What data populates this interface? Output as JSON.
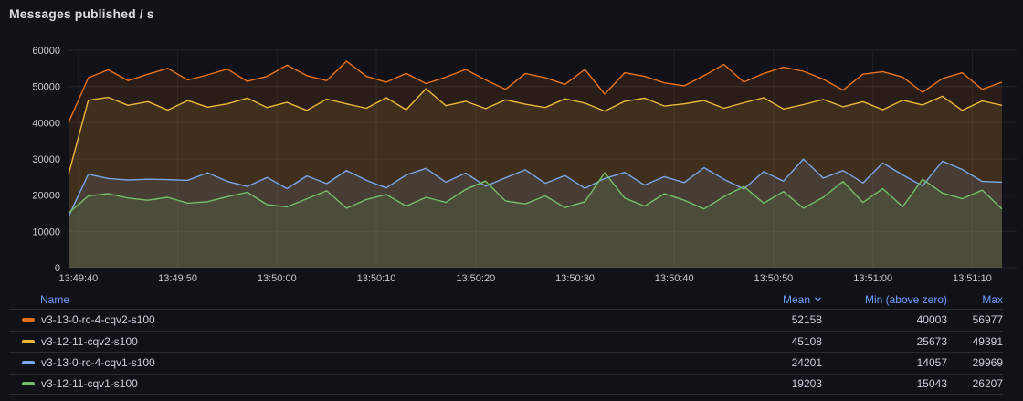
{
  "panel": {
    "title": "Messages published / s"
  },
  "colors": {
    "background": "#111217",
    "accent_blue": "#6E9FFF",
    "axis_text": "#C7C9D1",
    "grid_line": "rgba(204,204,220,0.10)"
  },
  "chart_data": {
    "type": "line",
    "title": "Messages published / s",
    "xlabel": "",
    "ylabel": "",
    "ylim": [
      0,
      60000
    ],
    "y_ticks": [
      0,
      10000,
      20000,
      30000,
      40000,
      50000,
      60000
    ],
    "x_tick_labels": [
      "13:49:40",
      "13:49:50",
      "13:50:00",
      "13:50:10",
      "13:50:20",
      "13:50:30",
      "13:50:40",
      "13:50:50",
      "13:51:00",
      "13:51:10"
    ],
    "grid": true,
    "legend_position": "bottom-table",
    "start_time": "13:49:39",
    "interval_s": 2,
    "fill_opacity": 0.12,
    "series": [
      {
        "name": "v3-13-0-rc-4-cqv2-s100",
        "color": "#E8721F",
        "values": [
          40003,
          52400,
          54600,
          51600,
          53400,
          55000,
          51800,
          53200,
          54800,
          51400,
          52800,
          55900,
          53000,
          51600,
          56977,
          52800,
          51200,
          53600,
          50800,
          52600,
          54700,
          51800,
          49200,
          53600,
          52400,
          50600,
          54700,
          47900,
          53800,
          52800,
          51000,
          50200,
          53000,
          56100,
          51200,
          53600,
          55300,
          54200,
          52000,
          49000,
          53400,
          54100,
          52600,
          48400,
          52200,
          53800,
          49200,
          51200
        ]
      },
      {
        "name": "v3-12-11-cqv2-s100",
        "color": "#EAB839",
        "values": [
          25673,
          46200,
          47000,
          44800,
          45800,
          43500,
          46100,
          44300,
          45200,
          46800,
          44200,
          45600,
          43400,
          46500,
          45200,
          44000,
          46900,
          43600,
          49391,
          44700,
          45900,
          43900,
          46300,
          45100,
          44200,
          46600,
          45400,
          43200,
          45900,
          46800,
          44600,
          45200,
          46100,
          44000,
          45500,
          46900,
          43800,
          45000,
          46400,
          44400,
          45800,
          43600,
          46200,
          44900,
          47300,
          43400,
          46000,
          44800
        ]
      },
      {
        "name": "v3-13-0-rc-4-cqv1-s100",
        "color": "#79A6E7",
        "values": [
          14057,
          25800,
          24600,
          24200,
          24400,
          24300,
          24100,
          26200,
          23800,
          22400,
          24900,
          21800,
          25300,
          23200,
          26800,
          24100,
          22000,
          25600,
          27400,
          23600,
          26100,
          22500,
          24800,
          27000,
          23300,
          25400,
          21900,
          24600,
          26300,
          22800,
          25100,
          23500,
          27600,
          24400,
          21700,
          26500,
          23900,
          29969,
          24700,
          26800,
          23400,
          28900,
          25600,
          22600,
          29400,
          27100,
          23800,
          23600
        ]
      },
      {
        "name": "v3-12-11-cqv1-s100",
        "color": "#73BF69",
        "values": [
          15043,
          19800,
          20400,
          19200,
          18600,
          19400,
          17800,
          18200,
          19600,
          20800,
          17400,
          16800,
          19000,
          21200,
          16400,
          18800,
          20200,
          17000,
          19400,
          18000,
          21600,
          23900,
          18400,
          17600,
          19800,
          16600,
          18200,
          26207,
          19200,
          17000,
          20400,
          18600,
          16200,
          19600,
          22400,
          17800,
          21000,
          16400,
          19400,
          23800,
          18000,
          21800,
          16800,
          24400,
          20600,
          19000,
          21400,
          16200
        ]
      }
    ]
  },
  "legend": {
    "columns": {
      "name": "Name",
      "mean": "Mean",
      "min": "Min (above zero)",
      "max": "Max"
    },
    "sort": {
      "column": "mean",
      "direction": "desc"
    },
    "rows": [
      {
        "name": "v3-13-0-rc-4-cqv2-s100",
        "color": "#E8721F",
        "mean": "52158",
        "min": "40003",
        "max": "56977"
      },
      {
        "name": "v3-12-11-cqv2-s100",
        "color": "#EAB839",
        "mean": "45108",
        "min": "25673",
        "max": "49391"
      },
      {
        "name": "v3-13-0-rc-4-cqv1-s100",
        "color": "#79A6E7",
        "mean": "24201",
        "min": "14057",
        "max": "29969"
      },
      {
        "name": "v3-12-11-cqv1-s100",
        "color": "#73BF69",
        "mean": "19203",
        "min": "15043",
        "max": "26207"
      }
    ]
  }
}
